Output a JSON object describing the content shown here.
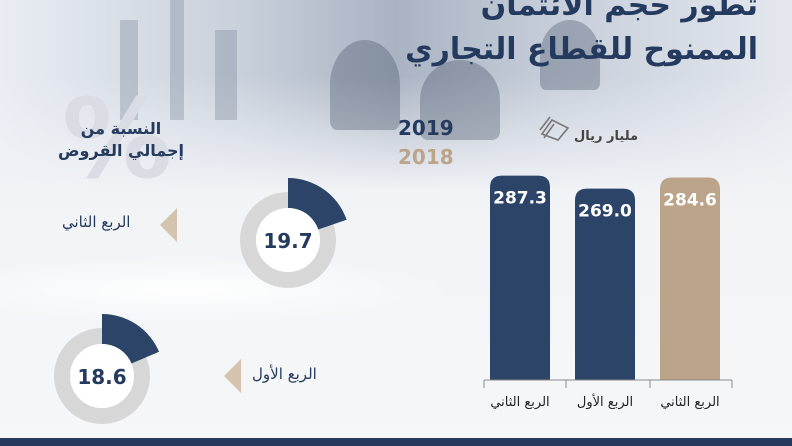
{
  "title": {
    "line1": "تطور حجم الائتمان",
    "line2": "الممنوح للقطاع التجاري"
  },
  "colors": {
    "navy": "#2b4468",
    "beige": "#bba48a",
    "ring_gray": "#d7d7d7"
  },
  "watermark": "%",
  "ratio_label": {
    "line1": "النسبة من",
    "line2": "إجمالي القروض"
  },
  "legend": {
    "year_2019": "2019",
    "year_2018": "2018"
  },
  "unit": {
    "label": "مليار ريال",
    "icon": "banknotes-icon"
  },
  "quarters": {
    "q2": "الربع الثاني",
    "q1": "الربع الأول"
  },
  "chart_data": [
    {
      "type": "bar",
      "categories": [
        "الربع الثاني",
        "الربع الأول",
        "الربع الثاني"
      ],
      "series_year": [
        "2019",
        "2019",
        "2018"
      ],
      "values": [
        287.3,
        269.0,
        284.6
      ],
      "value_labels": [
        "287.3",
        "269.0",
        "284.6"
      ],
      "ylim": [
        0,
        300
      ],
      "unit": "مليار ريال",
      "colors": [
        "#2b4468",
        "#2b4468",
        "#bba48a"
      ]
    },
    {
      "type": "pie",
      "categories": [
        "الربع الثاني",
        "الربع الأول"
      ],
      "values": [
        19.7,
        18.6
      ],
      "value_labels": [
        "19.7",
        "18.6"
      ],
      "unit": "%"
    }
  ]
}
